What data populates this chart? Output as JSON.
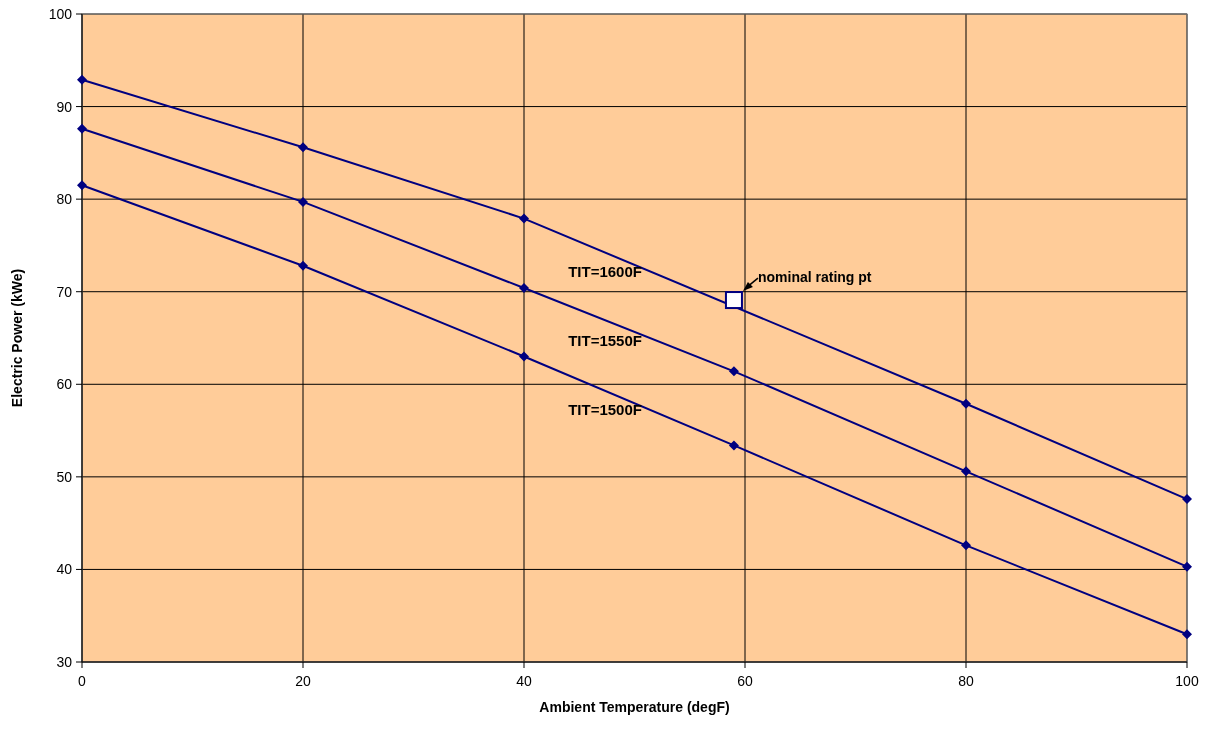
{
  "chart_data": {
    "type": "line",
    "xlabel": "Ambient Temperature (degF)",
    "ylabel": "Electric Power (kWe)",
    "xlim": [
      0,
      100
    ],
    "xticks": [
      0,
      20,
      40,
      60,
      80,
      100
    ],
    "ylim": [
      30,
      100
    ],
    "yticks": [
      30,
      40,
      50,
      60,
      70,
      80,
      90,
      100
    ],
    "grid": true,
    "marker": "diamond",
    "line_style": "solid",
    "series": [
      {
        "name": "TIT=1600F",
        "color": "#000080",
        "x": [
          0,
          20,
          40,
          80,
          100
        ],
        "values": [
          92.9,
          85.6,
          77.9,
          57.9,
          47.6
        ]
      },
      {
        "name": "TIT=1550F",
        "color": "#000080",
        "x": [
          0,
          20,
          40,
          59,
          80,
          100
        ],
        "values": [
          87.6,
          79.7,
          70.4,
          61.4,
          50.6,
          40.3
        ]
      },
      {
        "name": "TIT=1500F",
        "color": "#000080",
        "x": [
          0,
          20,
          40,
          59,
          80,
          100
        ],
        "values": [
          81.5,
          72.8,
          63.0,
          53.4,
          42.6,
          33.0
        ]
      },
      {
        "type": "scatter",
        "marker": "square",
        "color": "#000080",
        "x": [
          59
        ],
        "values": [
          69.1
        ]
      }
    ],
    "annotations": [
      {
        "text": "nominal rating pt",
        "x": 59,
        "y": 69.1
      }
    ]
  }
}
